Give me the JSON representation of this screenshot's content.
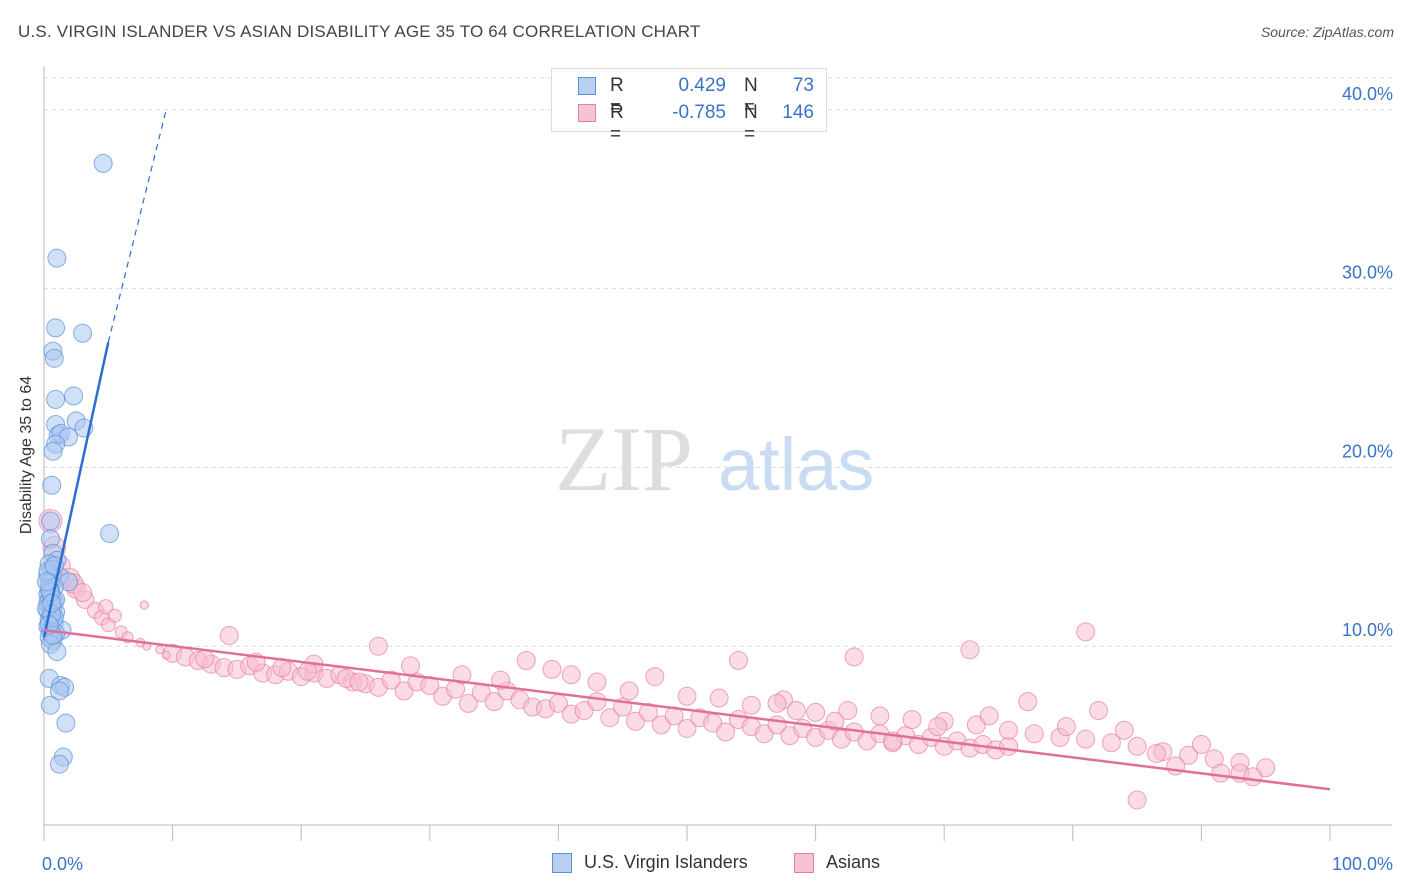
{
  "chart_data": {
    "type": "scatter",
    "title": "U.S. VIRGIN ISLANDER VS ASIAN DISABILITY AGE 35 TO 64 CORRELATION CHART",
    "source": "Source: ZipAtlas.com",
    "ylabel": "Disability Age 35 to 64",
    "xlabel": "",
    "xlim": [
      0,
      100
    ],
    "ylim": [
      0,
      42
    ],
    "x_tick_labels": {
      "min": "0.0%",
      "max": "100.0%"
    },
    "y_ticks": [
      {
        "value": 10,
        "label": "10.0%"
      },
      {
        "value": 20,
        "label": "20.0%"
      },
      {
        "value": 30,
        "label": "30.0%"
      },
      {
        "value": 40,
        "label": "40.0%"
      }
    ],
    "watermark": {
      "zip": "ZIP",
      "atlas": "atlas"
    },
    "legend": {
      "r_label": "R =",
      "n_label": "N =",
      "rows": [
        {
          "name": "U.S. Virgin Islanders",
          "r": "0.429",
          "n": "73",
          "color": "#5b8fd9",
          "fill": "#b8cff2"
        },
        {
          "name": "Asians",
          "r": "-0.785",
          "n": "146",
          "color": "#e87fa4",
          "fill": "#f6c3d6"
        }
      ]
    },
    "series": [
      {
        "name": "U.S. Virgin Islanders",
        "color": "#5b8fd9",
        "fill": "#a9c6f0",
        "trend": {
          "x0": 0.0,
          "y0": 10.5,
          "x1": 5.0,
          "y1": 27.0,
          "dash_to_x": 9.5,
          "dash_to_y": 40.0,
          "color": "#2a6ed2"
        },
        "points": [
          [
            4.6,
            37.0
          ],
          [
            1.0,
            31.7
          ],
          [
            0.9,
            27.8
          ],
          [
            3.0,
            27.5
          ],
          [
            0.7,
            26.5
          ],
          [
            0.8,
            26.1
          ],
          [
            0.9,
            23.8
          ],
          [
            2.3,
            24.0
          ],
          [
            0.9,
            22.4
          ],
          [
            2.5,
            22.6
          ],
          [
            3.1,
            22.2
          ],
          [
            1.1,
            21.8
          ],
          [
            1.3,
            21.9
          ],
          [
            1.9,
            21.7
          ],
          [
            0.9,
            21.3
          ],
          [
            0.7,
            20.9
          ],
          [
            0.6,
            19.0
          ],
          [
            0.5,
            17.0
          ],
          [
            5.1,
            16.3
          ],
          [
            0.5,
            16.0
          ],
          [
            0.7,
            15.2
          ],
          [
            1.0,
            14.8
          ],
          [
            0.4,
            14.6
          ],
          [
            0.6,
            14.3
          ],
          [
            0.3,
            14.0
          ],
          [
            0.7,
            13.8
          ],
          [
            1.2,
            13.9
          ],
          [
            1.9,
            13.6
          ],
          [
            0.4,
            13.5
          ],
          [
            0.8,
            13.3
          ],
          [
            0.5,
            13.1
          ],
          [
            0.3,
            12.9
          ],
          [
            0.6,
            12.8
          ],
          [
            0.4,
            12.6
          ],
          [
            0.8,
            12.5
          ],
          [
            0.5,
            12.3
          ],
          [
            0.7,
            12.2
          ],
          [
            0.3,
            12.0
          ],
          [
            0.9,
            11.9
          ],
          [
            0.5,
            11.7
          ],
          [
            0.4,
            11.5
          ],
          [
            0.8,
            11.3
          ],
          [
            0.3,
            11.1
          ],
          [
            0.6,
            11.0
          ],
          [
            1.4,
            10.9
          ],
          [
            0.5,
            10.8
          ],
          [
            0.9,
            10.7
          ],
          [
            0.4,
            10.5
          ],
          [
            0.7,
            10.3
          ],
          [
            0.5,
            10.1
          ],
          [
            1.0,
            9.7
          ],
          [
            0.4,
            8.2
          ],
          [
            1.3,
            7.8
          ],
          [
            1.6,
            7.7
          ],
          [
            1.2,
            7.5
          ],
          [
            0.5,
            6.7
          ],
          [
            1.7,
            5.7
          ],
          [
            1.5,
            3.8
          ],
          [
            1.2,
            3.4
          ],
          [
            0.3,
            12.4
          ],
          [
            0.6,
            12.7
          ],
          [
            0.8,
            11.6
          ],
          [
            0.4,
            13.2
          ],
          [
            0.2,
            12.1
          ],
          [
            0.9,
            12.6
          ],
          [
            0.6,
            11.8
          ],
          [
            0.3,
            14.2
          ],
          [
            0.7,
            10.6
          ],
          [
            0.5,
            13.0
          ],
          [
            0.4,
            11.2
          ],
          [
            0.8,
            14.5
          ],
          [
            0.6,
            12.4
          ],
          [
            0.2,
            13.6
          ]
        ]
      },
      {
        "name": "Asians",
        "color": "#e87fa4",
        "fill": "#f6bdd2",
        "trend": {
          "x0": 0.0,
          "y0": 10.9,
          "x1": 100.0,
          "y1": 2.0,
          "color": "#e0709a"
        },
        "points": [
          [
            0.5,
            17.0
          ],
          [
            0.8,
            15.5
          ],
          [
            1.2,
            14.5
          ],
          [
            2.0,
            13.8
          ],
          [
            2.5,
            13.2
          ],
          [
            3.2,
            12.6
          ],
          [
            4.0,
            12.0
          ],
          [
            4.5,
            11.6
          ],
          [
            5.0,
            11.2
          ],
          [
            6.0,
            10.8
          ],
          [
            6.5,
            10.5
          ],
          [
            7.5,
            10.2
          ],
          [
            8.0,
            10.0
          ],
          [
            9.0,
            9.8
          ],
          [
            10.0,
            9.6
          ],
          [
            11.0,
            9.4
          ],
          [
            12.0,
            9.2
          ],
          [
            13.0,
            9.0
          ],
          [
            14.0,
            8.8
          ],
          [
            15.0,
            8.7
          ],
          [
            16.0,
            8.9
          ],
          [
            17.0,
            8.5
          ],
          [
            18.0,
            8.4
          ],
          [
            19.0,
            8.6
          ],
          [
            20.0,
            8.3
          ],
          [
            21.0,
            8.5
          ],
          [
            22.0,
            8.2
          ],
          [
            23.0,
            8.4
          ],
          [
            24.0,
            8.0
          ],
          [
            25.0,
            7.9
          ],
          [
            26.0,
            7.7
          ],
          [
            27.0,
            8.1
          ],
          [
            28.0,
            7.5
          ],
          [
            29.0,
            8.0
          ],
          [
            30.0,
            7.8
          ],
          [
            31.0,
            7.2
          ],
          [
            32.0,
            7.6
          ],
          [
            33.0,
            6.8
          ],
          [
            34.0,
            7.4
          ],
          [
            35.0,
            6.9
          ],
          [
            36.0,
            7.5
          ],
          [
            37.0,
            7.0
          ],
          [
            38.0,
            6.6
          ],
          [
            39.0,
            6.5
          ],
          [
            40.0,
            6.8
          ],
          [
            41.0,
            6.2
          ],
          [
            42.0,
            6.4
          ],
          [
            43.0,
            6.9
          ],
          [
            44.0,
            6.0
          ],
          [
            45.0,
            6.6
          ],
          [
            46.0,
            5.8
          ],
          [
            47.0,
            6.3
          ],
          [
            48.0,
            5.6
          ],
          [
            49.0,
            6.1
          ],
          [
            50.0,
            5.4
          ],
          [
            51.0,
            6.0
          ],
          [
            52.0,
            5.7
          ],
          [
            53.0,
            5.2
          ],
          [
            54.0,
            5.9
          ],
          [
            55.0,
            5.5
          ],
          [
            56.0,
            5.1
          ],
          [
            57.0,
            5.6
          ],
          [
            58.0,
            5.0
          ],
          [
            59.0,
            5.4
          ],
          [
            60.0,
            4.9
          ],
          [
            61.0,
            5.3
          ],
          [
            62.0,
            4.8
          ],
          [
            63.0,
            5.2
          ],
          [
            64.0,
            4.7
          ],
          [
            65.0,
            5.1
          ],
          [
            66.0,
            4.6
          ],
          [
            67.0,
            5.0
          ],
          [
            68.0,
            4.5
          ],
          [
            69.0,
            4.9
          ],
          [
            70.0,
            4.4
          ],
          [
            71.0,
            4.7
          ],
          [
            72.0,
            4.3
          ],
          [
            73.0,
            4.5
          ],
          [
            74.0,
            4.2
          ],
          [
            75.0,
            4.4
          ],
          [
            2.3,
            13.5
          ],
          [
            4.8,
            12.2
          ],
          [
            7.8,
            12.3
          ],
          [
            14.4,
            10.6
          ],
          [
            21.0,
            9.0
          ],
          [
            26.0,
            10.0
          ],
          [
            28.5,
            8.9
          ],
          [
            32.5,
            8.4
          ],
          [
            35.5,
            8.1
          ],
          [
            37.5,
            9.2
          ],
          [
            39.5,
            8.7
          ],
          [
            41.0,
            8.4
          ],
          [
            43.0,
            8.0
          ],
          [
            45.5,
            7.5
          ],
          [
            47.5,
            8.3
          ],
          [
            50.0,
            7.2
          ],
          [
            52.5,
            7.1
          ],
          [
            55.0,
            6.7
          ],
          [
            57.5,
            7.0
          ],
          [
            60.0,
            6.3
          ],
          [
            62.5,
            6.4
          ],
          [
            65.0,
            6.1
          ],
          [
            67.5,
            5.9
          ],
          [
            70.0,
            5.8
          ],
          [
            72.5,
            5.6
          ],
          [
            75.0,
            5.3
          ],
          [
            77.0,
            5.1
          ],
          [
            79.0,
            4.9
          ],
          [
            81.0,
            4.8
          ],
          [
            83.0,
            4.6
          ],
          [
            85.0,
            4.4
          ],
          [
            87.0,
            4.1
          ],
          [
            89.0,
            3.9
          ],
          [
            91.0,
            3.7
          ],
          [
            93.0,
            3.5
          ],
          [
            95.0,
            3.2
          ],
          [
            85.0,
            1.4
          ],
          [
            93.0,
            2.9
          ],
          [
            94.0,
            2.7
          ],
          [
            63.0,
            9.4
          ],
          [
            72.0,
            9.8
          ],
          [
            81.0,
            10.8
          ],
          [
            54.0,
            9.2
          ],
          [
            57.0,
            6.8
          ],
          [
            58.5,
            6.4
          ],
          [
            61.5,
            5.8
          ],
          [
            66.0,
            4.7
          ],
          [
            69.5,
            5.5
          ],
          [
            73.5,
            6.1
          ],
          [
            76.5,
            6.9
          ],
          [
            79.5,
            5.5
          ],
          [
            82.0,
            6.4
          ],
          [
            84.0,
            5.3
          ],
          [
            86.5,
            4.0
          ],
          [
            88.0,
            3.3
          ],
          [
            90.0,
            4.5
          ],
          [
            91.5,
            2.9
          ],
          [
            3.0,
            13.0
          ],
          [
            5.5,
            11.7
          ],
          [
            9.5,
            9.5
          ],
          [
            12.5,
            9.3
          ],
          [
            16.5,
            9.1
          ],
          [
            18.5,
            8.8
          ],
          [
            20.5,
            8.6
          ],
          [
            23.5,
            8.2
          ],
          [
            24.5,
            8.0
          ]
        ]
      }
    ]
  }
}
